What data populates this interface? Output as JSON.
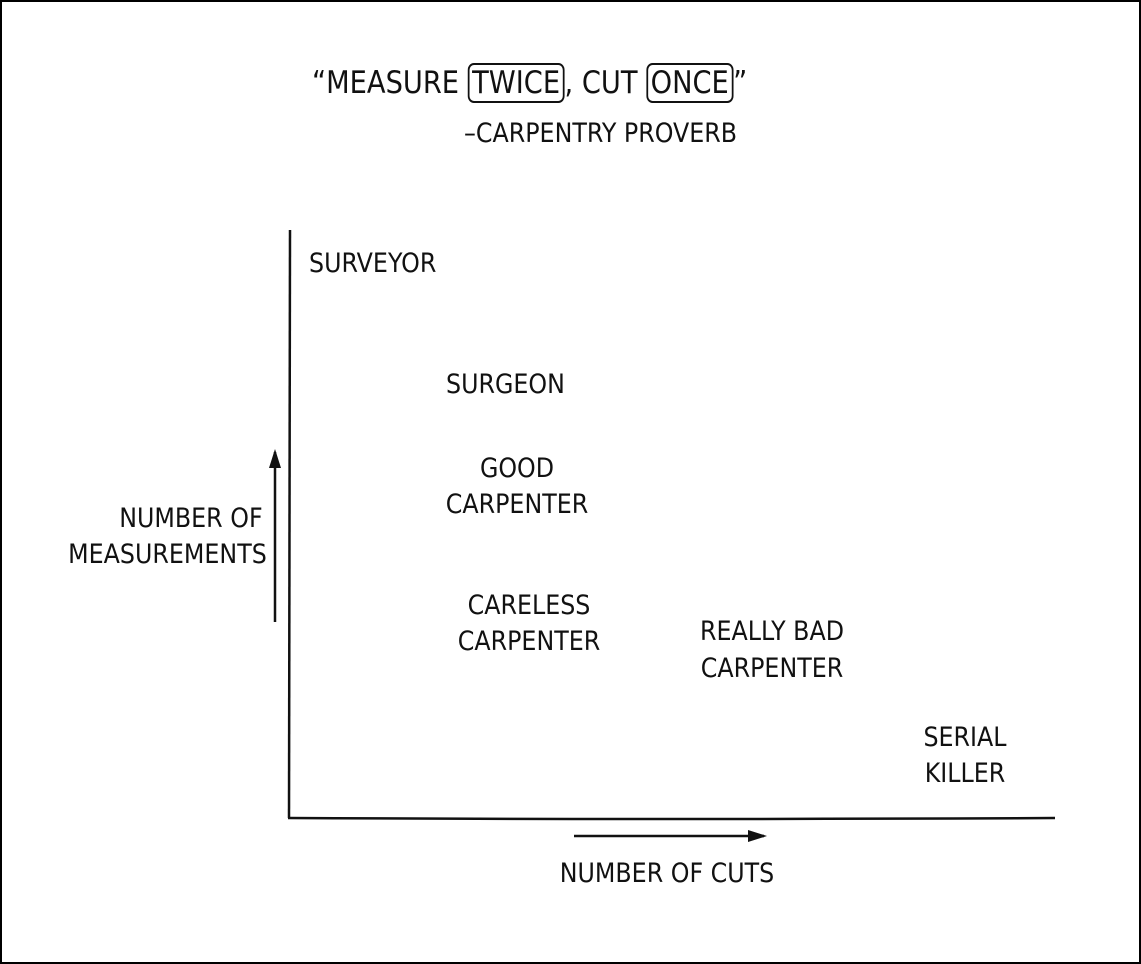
{
  "title": {
    "quote_open": "“MEASURE ",
    "word_twice": "TWICE",
    "middle": ", CUT ",
    "word_once": "ONCE",
    "quote_close": "”",
    "attribution": "–CARPENTRY PROVERB"
  },
  "axes": {
    "xlabel": "NUMBER OF CUTS",
    "ylabel_line1": "NUMBER OF",
    "ylabel_line2": "MEASUREMENTS"
  },
  "labels": {
    "surveyor": "SURVEYOR",
    "surgeon": "SURGEON",
    "good_carpenter": [
      "GOOD",
      "CARPENTER"
    ],
    "careless_carpenter": [
      "CARELESS",
      "CARPENTER"
    ],
    "really_bad_carpenter": [
      "REALLY BAD",
      "CARPENTER"
    ],
    "serial_killer": [
      "SERIAL",
      "KILLER"
    ]
  }
}
